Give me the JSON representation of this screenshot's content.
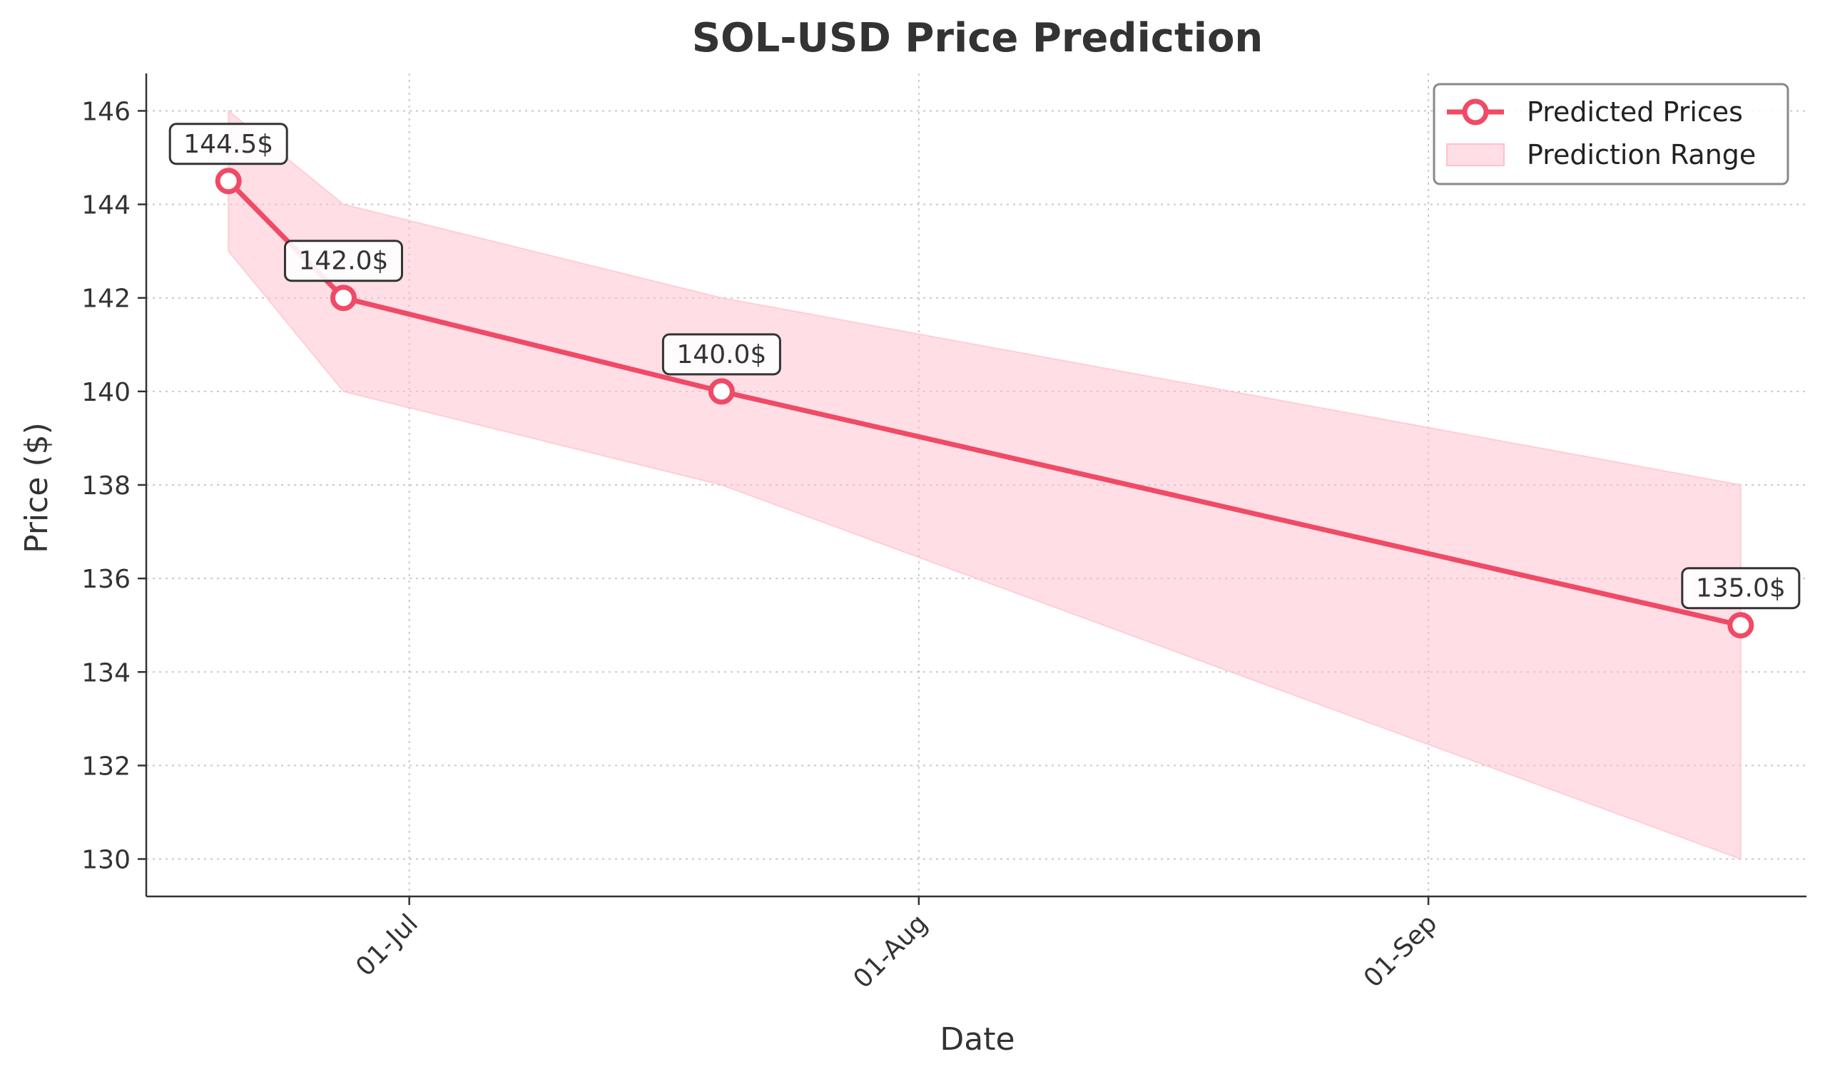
{
  "chart_data": {
    "type": "line",
    "title": "SOL-USD Price Prediction",
    "xlabel": "Date",
    "ylabel": "Price ($)",
    "x_tick_labels": [
      "01-Jul",
      "01-Aug",
      "01-Sep"
    ],
    "y_ticks": [
      130,
      132,
      134,
      136,
      138,
      140,
      142,
      144,
      146
    ],
    "ylim": [
      129.2,
      146.8
    ],
    "xlim": [
      "2024-06-15",
      "2024-09-24"
    ],
    "grid": true,
    "legend_position": "top-right",
    "series": [
      {
        "name": "Predicted Prices",
        "color": "#f04a66",
        "points": [
          {
            "x": "2024-06-20",
            "y": 144.5,
            "label": "144.5$"
          },
          {
            "x": "2024-06-27",
            "y": 142.0,
            "label": "142.0$"
          },
          {
            "x": "2024-07-20",
            "y": 140.0,
            "label": "140.0$"
          },
          {
            "x": "2024-09-20",
            "y": 135.0,
            "label": "135.0$"
          }
        ]
      },
      {
        "name": "Prediction Range",
        "color": "#ffc0cb",
        "type": "area",
        "points": [
          {
            "x": "2024-06-20",
            "low": 143.0,
            "high": 146.0
          },
          {
            "x": "2024-06-27",
            "low": 140.0,
            "high": 144.0
          },
          {
            "x": "2024-07-20",
            "low": 138.0,
            "high": 142.0
          },
          {
            "x": "2024-09-20",
            "low": 130.0,
            "high": 138.0
          }
        ]
      }
    ]
  }
}
